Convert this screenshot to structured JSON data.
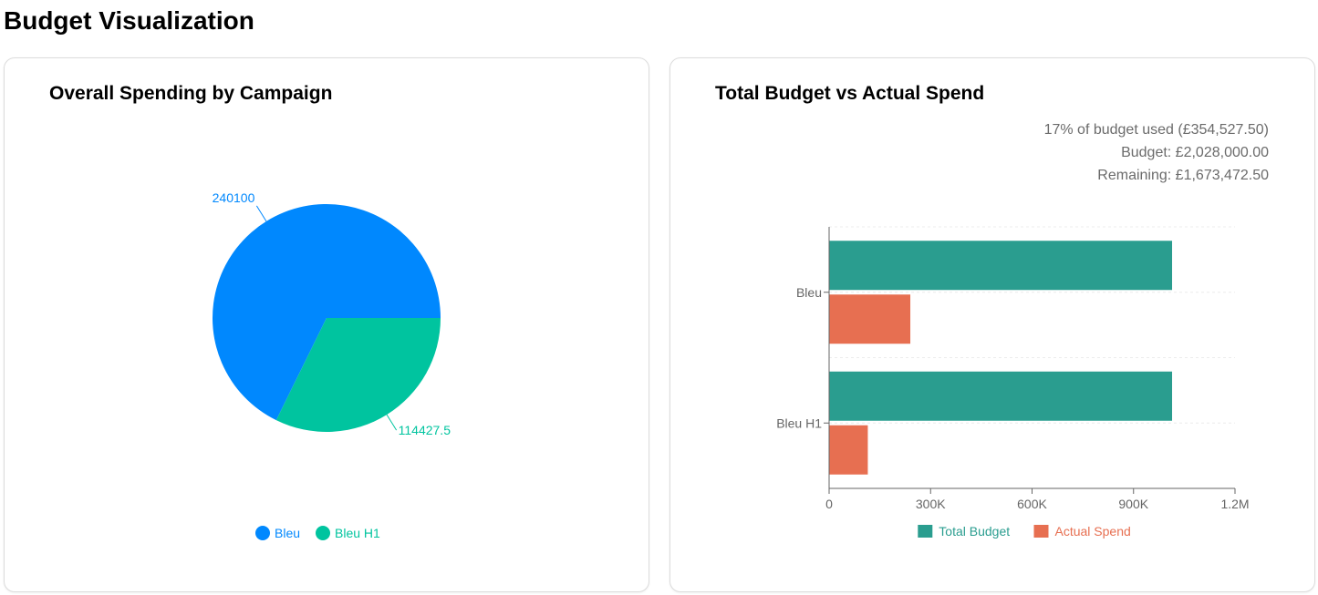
{
  "page": {
    "title": "Budget Visualization"
  },
  "pie_card": {
    "title": "Overall Spending by Campaign"
  },
  "bar_card": {
    "title": "Total Budget vs Actual Spend",
    "summary": [
      "17% of budget used (£354,527.50)",
      "Budget: £2,028,000.00",
      "Remaining: £1,673,472.50"
    ]
  },
  "chart_data": [
    {
      "type": "pie",
      "title": "Overall Spending by Campaign",
      "slices": [
        {
          "name": "Bleu",
          "value": 240100,
          "label": "240100",
          "color": "#0088FE"
        },
        {
          "name": "Bleu H1",
          "value": 114427.5,
          "label": "114427.5",
          "color": "#00C49F"
        }
      ],
      "legend": "bottom-center"
    },
    {
      "type": "bar",
      "orientation": "horizontal",
      "title": "Total Budget vs Actual Spend",
      "categories": [
        "Bleu",
        "Bleu H1"
      ],
      "series": [
        {
          "name": "Total Budget",
          "values": [
            1014000,
            1014000
          ],
          "color": "#2A9D8F"
        },
        {
          "name": "Actual Spend",
          "values": [
            240100,
            114427.5
          ],
          "color": "#E76F51"
        }
      ],
      "xlim": [
        0,
        1200000
      ],
      "xticks": [
        0,
        300000,
        600000,
        900000,
        1200000
      ],
      "xtick_labels": [
        "0",
        "300K",
        "600K",
        "900K",
        "1.2M"
      ],
      "grid": "horizontal dashed",
      "legend": "bottom-center"
    }
  ]
}
